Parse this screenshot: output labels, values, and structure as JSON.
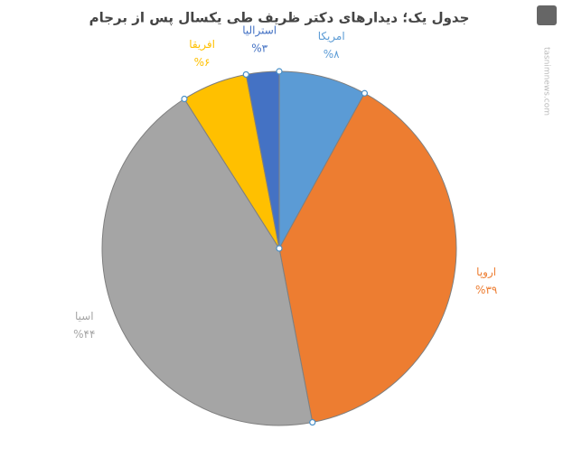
{
  "chart_data": {
    "type": "pie",
    "title": "جدول یک؛ دیدارهای دکتر ظریف طی یکسال پس از برجام",
    "categories": [
      "امریکا",
      "اروپا",
      "اسیا",
      "افریقا",
      "استرالیا"
    ],
    "values": [
      8,
      39,
      44,
      6,
      3
    ],
    "value_labels": [
      "%۸",
      "%۳۹",
      "%۴۴",
      "%۶",
      "%۳"
    ],
    "colors": [
      "#5b9bd5",
      "#ed7d31",
      "#a5a5a5",
      "#ffc000",
      "#4472c4"
    ],
    "watermark": "tasnimnews.com"
  }
}
